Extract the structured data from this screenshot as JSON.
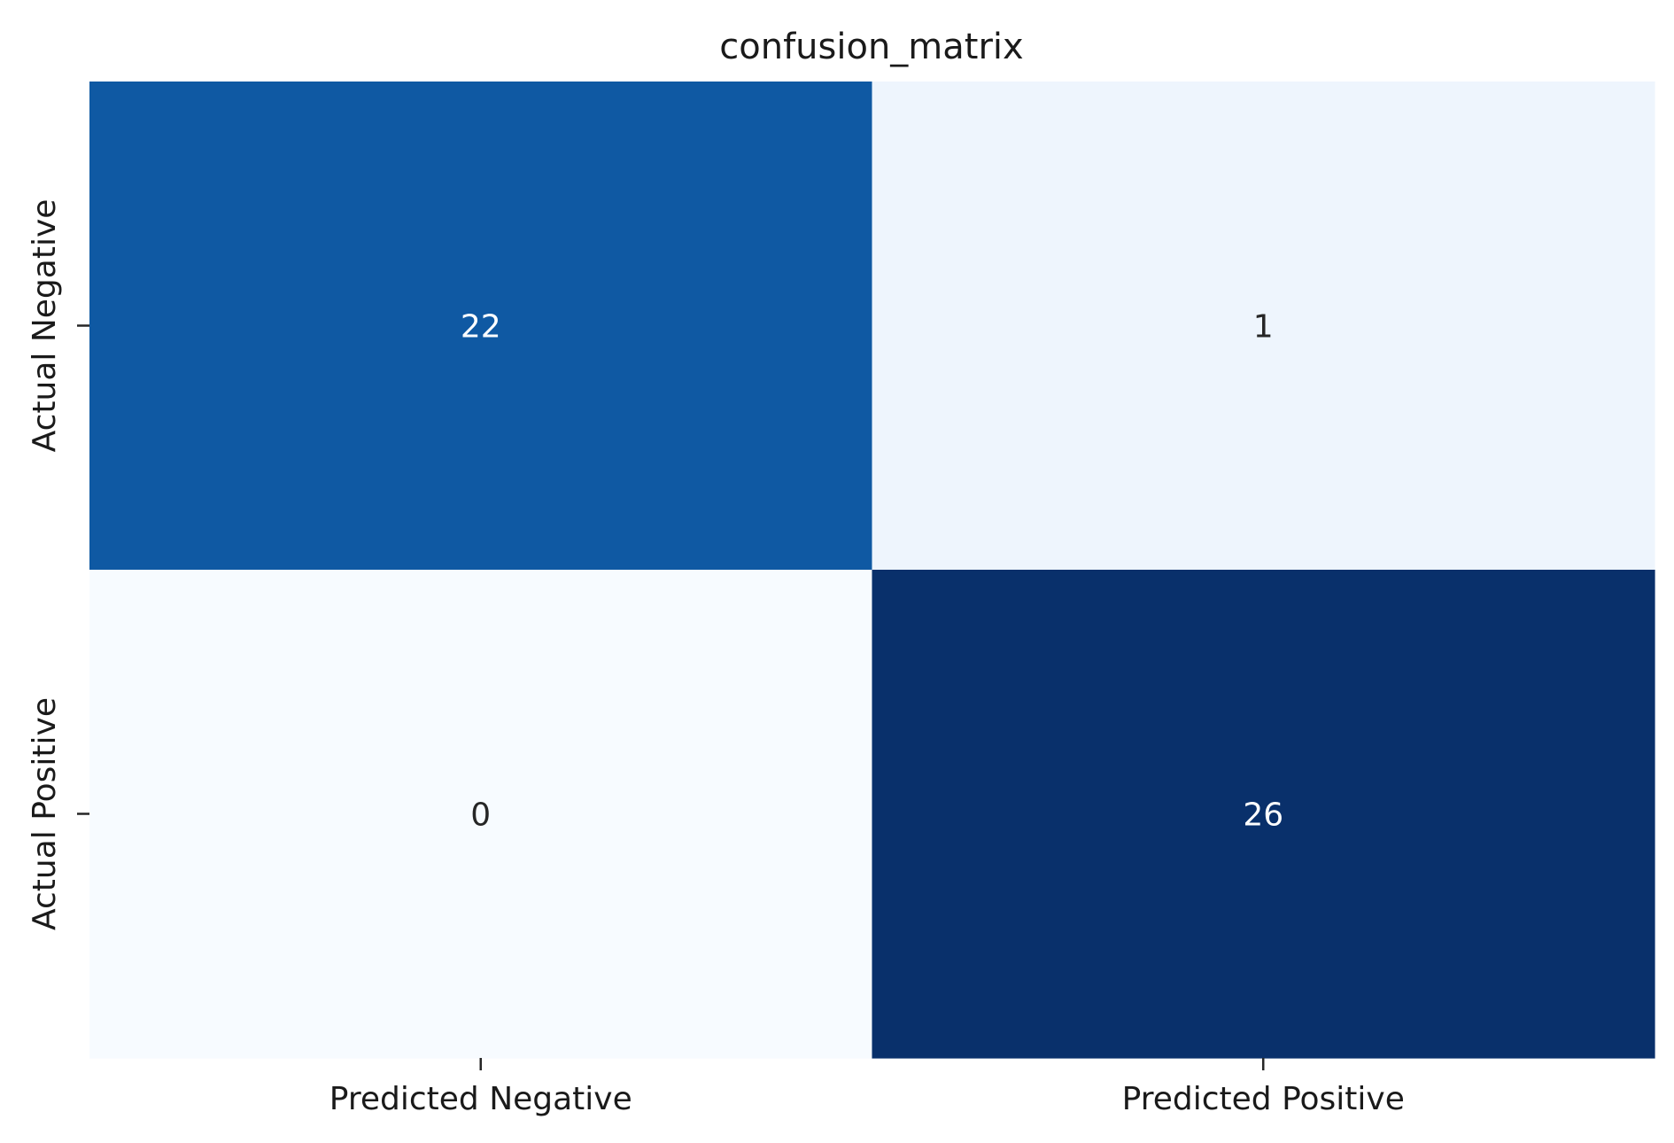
{
  "chart_data": {
    "type": "heatmap",
    "title": "confusion_matrix",
    "xlabel": "",
    "ylabel": "",
    "x_categories": [
      "Predicted Negative",
      "Predicted Positive"
    ],
    "y_categories": [
      "Actual Negative",
      "Actual Positive"
    ],
    "values": [
      [
        22,
        1
      ],
      [
        0,
        26
      ]
    ],
    "colormap": "Blues",
    "colorbar": false,
    "cell_colors": [
      [
        "#0f59a3",
        "#eef5fd"
      ],
      [
        "#f7fbff",
        "#09306b"
      ]
    ],
    "annotation_colors": [
      [
        "#ffffff",
        "#262626"
      ],
      [
        "#262626",
        "#ffffff"
      ]
    ]
  }
}
